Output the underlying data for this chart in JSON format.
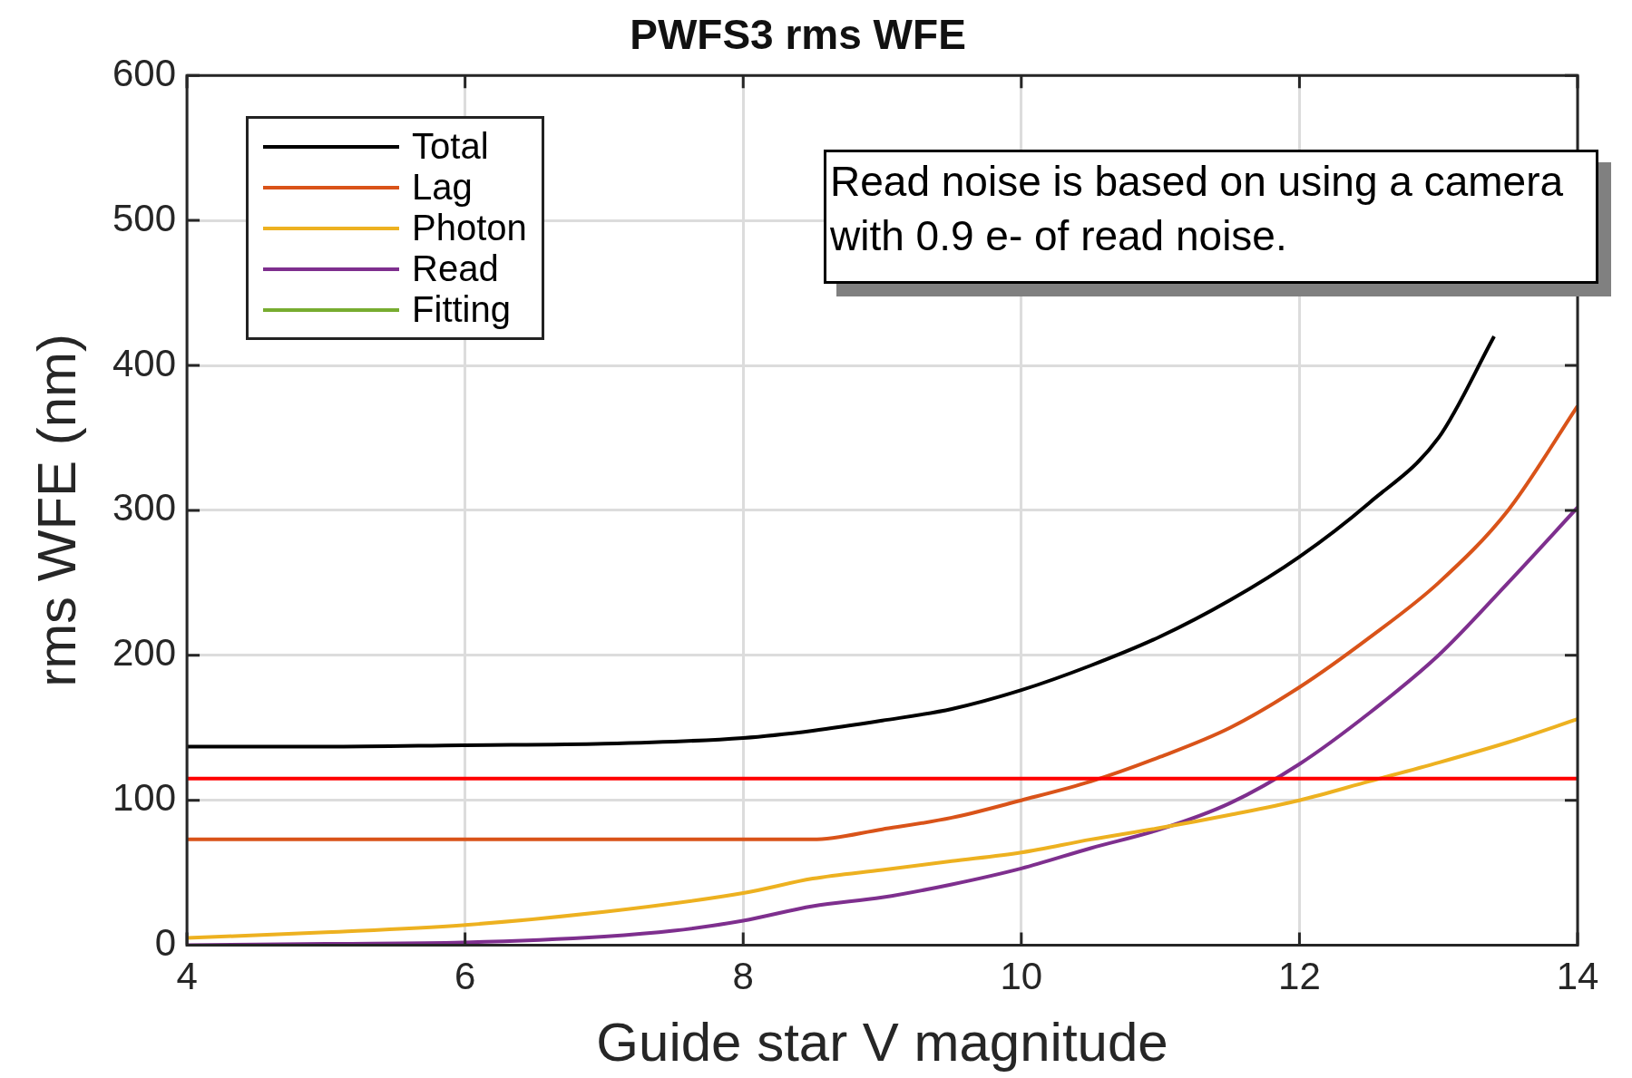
{
  "chart_data": {
    "type": "line",
    "title": "PWFS3 rms WFE",
    "xlabel": "Guide star V magnitude",
    "ylabel": "rms WFE (nm)",
    "xlim": [
      4,
      14
    ],
    "xticks": [
      4,
      6,
      8,
      10,
      12,
      14
    ],
    "ylim": [
      0,
      600
    ],
    "yticks": [
      0,
      100,
      200,
      300,
      400,
      500,
      600
    ],
    "grid": true,
    "legend": "top left",
    "marker": "none",
    "line_style": "solid",
    "series": [
      {
        "name": "Total",
        "color": "#000000",
        "x": [
          4,
          5,
          6,
          7,
          8,
          8.5,
          9,
          9.5,
          10,
          10.5,
          11,
          11.5,
          12,
          12.5,
          13,
          13.4
        ],
        "values": [
          137,
          137,
          138,
          139,
          143,
          148,
          155,
          163,
          176,
          193,
          213,
          238,
          268,
          305,
          350,
          420
        ]
      },
      {
        "name": "Lag",
        "color": "#d95319",
        "x": [
          4,
          5,
          6,
          7,
          8,
          8.5,
          9,
          9.5,
          10,
          10.5,
          11,
          11.5,
          12,
          12.5,
          13,
          13.5,
          14
        ],
        "values": [
          73,
          73,
          73,
          73,
          73,
          73,
          80,
          88,
          100,
          113,
          130,
          150,
          178,
          212,
          250,
          300,
          372
        ]
      },
      {
        "name": "Photon",
        "color": "#edb120",
        "x": [
          4,
          5,
          6,
          7,
          8,
          8.5,
          9,
          9.5,
          10,
          10.5,
          11,
          11.5,
          12,
          12.5,
          13,
          13.5,
          14
        ],
        "values": [
          5,
          9,
          14,
          23,
          36,
          46,
          52,
          58,
          64,
          73,
          81,
          90,
          100,
          113,
          126,
          140,
          156
        ]
      },
      {
        "name": "Read",
        "color": "#7e2f8e",
        "x": [
          4,
          5,
          6,
          7,
          7.5,
          8,
          8.5,
          9,
          9.5,
          10,
          10.5,
          11,
          11.5,
          12,
          12.5,
          13,
          13.5,
          14
        ],
        "values": [
          0,
          1,
          2,
          6,
          10,
          17,
          27,
          33,
          42,
          53,
          67,
          80,
          98,
          125,
          160,
          200,
          250,
          302
        ]
      },
      {
        "name": "Fitting",
        "color": "#77ac30"
      }
    ],
    "ref_lines": [
      {
        "axis": "y",
        "value": 115,
        "color": "#ff0000"
      }
    ],
    "annotations": [
      "Read noise is based on using a camera with 0.9 e- of read noise."
    ]
  }
}
